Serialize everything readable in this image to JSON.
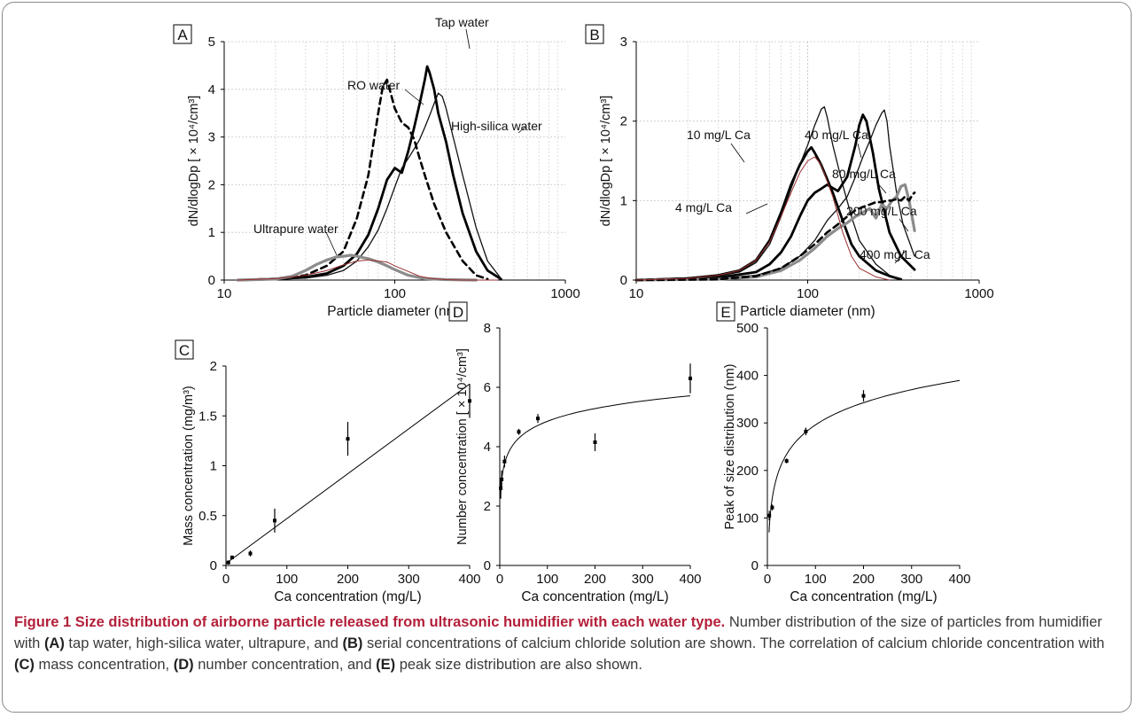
{
  "caption": {
    "title": "Figure 1 Size distribution of airborne particle released from ultrasonic humidifier with each water type.",
    "p1": " Number distribution of the size of particles from humidifier with ",
    "refA": "(A)",
    "p2": " tap water, high-silica water, ultrapure, and ",
    "refB": "(B)",
    "p3": " serial concentrations of calcium chloride solution are shown. The correlation of calcium chloride concentration with ",
    "refC": "(C)",
    "p4": " mass concentration, ",
    "refD": "(D)",
    "p5": " number concentration, and ",
    "refE": "(E)",
    "p6": " peak size distribution are also shown."
  },
  "chart_data": [
    {
      "panel": "A",
      "type": "line",
      "xscale": "log",
      "xlim": [
        10,
        1000
      ],
      "ylim": [
        0,
        5
      ],
      "xticks": [
        10,
        100,
        1000
      ],
      "yticks": [
        0,
        1,
        2,
        3,
        4,
        5
      ],
      "xlabel": "Particle diameter (nm)",
      "ylabel": "dN/dlogDp [ × 10⁴/cm³]",
      "grid": "vertical log minor + horizontal major",
      "series": [
        {
          "name": "Tap water",
          "style": "thick-black",
          "x": [
            12,
            20,
            30,
            40,
            50,
            60,
            70,
            80,
            90,
            100,
            110,
            120,
            130,
            140,
            150,
            155,
            160,
            170,
            180,
            200,
            220,
            250,
            300,
            350,
            420
          ],
          "y": [
            0,
            0.02,
            0.06,
            0.14,
            0.3,
            0.55,
            0.95,
            1.5,
            2.1,
            2.35,
            2.25,
            2.7,
            3.2,
            3.7,
            4.2,
            4.48,
            4.35,
            4.0,
            3.5,
            2.9,
            2.2,
            1.4,
            0.6,
            0.2,
            0.02
          ]
        },
        {
          "name": "High-silica water",
          "style": "thin-black",
          "x": [
            12,
            20,
            30,
            40,
            50,
            60,
            70,
            80,
            90,
            100,
            110,
            120,
            130,
            140,
            150,
            160,
            170,
            180,
            190,
            200,
            220,
            250,
            300,
            350,
            420
          ],
          "y": [
            0,
            0.02,
            0.04,
            0.1,
            0.2,
            0.4,
            0.7,
            1.05,
            1.5,
            1.95,
            2.35,
            2.55,
            2.75,
            2.95,
            3.2,
            3.45,
            3.7,
            3.92,
            3.85,
            3.6,
            3.0,
            2.2,
            1.1,
            0.4,
            0.03
          ]
        },
        {
          "name": "RO water",
          "style": "dashed",
          "x": [
            12,
            20,
            30,
            40,
            50,
            60,
            70,
            80,
            85,
            90,
            95,
            100,
            110,
            120,
            130,
            140,
            150,
            170,
            200,
            250,
            300,
            350
          ],
          "y": [
            0,
            0.03,
            0.1,
            0.3,
            0.6,
            1.3,
            2.2,
            3.5,
            4.05,
            4.2,
            3.9,
            3.6,
            3.3,
            3.2,
            2.95,
            2.55,
            2.2,
            1.6,
            1.0,
            0.4,
            0.1,
            0.02
          ]
        },
        {
          "name": "Ultrapure water",
          "style": "thick-grey",
          "x": [
            12,
            20,
            25,
            30,
            35,
            40,
            45,
            50,
            55,
            60,
            65,
            70,
            80,
            90,
            100,
            120,
            150,
            200,
            300
          ],
          "y": [
            0,
            0.02,
            0.08,
            0.2,
            0.33,
            0.42,
            0.48,
            0.5,
            0.52,
            0.5,
            0.47,
            0.45,
            0.38,
            0.3,
            0.22,
            0.1,
            0.03,
            0.01,
            0
          ]
        },
        {
          "name": "",
          "style": "thin-red",
          "x": [
            12,
            20,
            30,
            40,
            50,
            60,
            70,
            80,
            90,
            100,
            120,
            140,
            160,
            180,
            200,
            250,
            300,
            400
          ],
          "y": [
            0,
            0.03,
            0.1,
            0.2,
            0.32,
            0.4,
            0.42,
            0.4,
            0.38,
            0.3,
            0.18,
            0.08,
            0.04,
            0.02,
            0.01,
            0,
            0,
            0
          ]
        }
      ],
      "annotations": [
        "Tap water",
        "RO water",
        "High-silica water",
        "Ultrapure water"
      ]
    },
    {
      "panel": "B",
      "type": "line",
      "xscale": "log",
      "xlim": [
        10,
        1000
      ],
      "ylim": [
        0,
        3
      ],
      "xticks": [
        10,
        100,
        1000
      ],
      "yticks": [
        0,
        1,
        2,
        3
      ],
      "xlabel": "Particle diameter (nm)",
      "ylabel": "dN/dlogDp [ × 10⁴/cm³]",
      "grid": "vertical log minor + horizontal major",
      "series": [
        {
          "name": "4 mg/L Ca",
          "style": "thick-black",
          "x": [
            10,
            20,
            30,
            40,
            50,
            60,
            70,
            80,
            90,
            100,
            105,
            110,
            120,
            140,
            160,
            180,
            200,
            250,
            300,
            350
          ],
          "y": [
            0,
            0.02,
            0.06,
            0.12,
            0.25,
            0.5,
            0.85,
            1.2,
            1.45,
            1.62,
            1.67,
            1.6,
            1.45,
            1.1,
            0.75,
            0.45,
            0.3,
            0.12,
            0.05,
            0.01
          ]
        },
        {
          "name": "10 mg/L Ca",
          "style": "thin-black",
          "x": [
            10,
            20,
            30,
            40,
            50,
            60,
            70,
            80,
            90,
            100,
            110,
            120,
            125,
            130,
            140,
            160,
            180,
            200,
            250,
            300,
            350
          ],
          "y": [
            0,
            0.02,
            0.05,
            0.1,
            0.22,
            0.45,
            0.8,
            1.15,
            1.45,
            1.7,
            1.95,
            2.15,
            2.18,
            2.05,
            1.7,
            1.2,
            0.8,
            0.5,
            0.2,
            0.06,
            0.01
          ]
        },
        {
          "name": "40 mg/L Ca",
          "style": "thick-black",
          "x": [
            10,
            30,
            50,
            60,
            70,
            80,
            90,
            100,
            110,
            120,
            130,
            150,
            170,
            190,
            200,
            210,
            220,
            240,
            260,
            300,
            350,
            420
          ],
          "y": [
            0,
            0.03,
            0.1,
            0.2,
            0.35,
            0.55,
            0.8,
            1.0,
            1.1,
            1.15,
            1.2,
            1.12,
            1.3,
            1.7,
            1.95,
            2.08,
            2.0,
            1.6,
            1.15,
            0.6,
            0.3,
            0.13
          ]
        },
        {
          "name": "80 mg/L Ca",
          "style": "thin-black",
          "x": [
            10,
            30,
            50,
            70,
            90,
            110,
            130,
            150,
            170,
            190,
            210,
            230,
            250,
            270,
            280,
            290,
            300,
            330,
            360,
            420
          ],
          "y": [
            0,
            0.02,
            0.06,
            0.15,
            0.3,
            0.5,
            0.75,
            0.9,
            1.05,
            1.3,
            1.55,
            1.75,
            1.95,
            2.1,
            2.14,
            2.0,
            1.7,
            1.1,
            0.7,
            0.3
          ]
        },
        {
          "name": "200 mg/L Ca",
          "style": "thick-grey",
          "x": [
            10,
            30,
            50,
            70,
            90,
            110,
            130,
            150,
            170,
            190,
            210,
            230,
            250,
            270,
            290,
            310,
            330,
            350,
            370,
            390,
            410,
            420
          ],
          "y": [
            0,
            0.01,
            0.04,
            0.12,
            0.25,
            0.4,
            0.55,
            0.65,
            0.72,
            0.8,
            0.85,
            0.9,
            0.78,
            0.95,
            0.9,
            1.0,
            1.05,
            1.18,
            1.2,
            1.0,
            0.75,
            0.62
          ]
        },
        {
          "name": "400 mg/L Ca",
          "style": "dashed",
          "x": [
            10,
            30,
            50,
            70,
            90,
            110,
            130,
            150,
            170,
            190,
            210,
            230,
            250,
            270,
            290,
            310,
            330,
            350,
            370,
            390,
            410,
            420
          ],
          "y": [
            0,
            0.01,
            0.05,
            0.15,
            0.3,
            0.45,
            0.6,
            0.7,
            0.8,
            0.88,
            0.92,
            0.95,
            0.98,
            0.98,
            1.0,
            1.0,
            1.02,
            1.0,
            1.05,
            1.0,
            1.08,
            1.1
          ]
        },
        {
          "name": "",
          "style": "thin-red",
          "x": [
            10,
            20,
            30,
            40,
            50,
            60,
            70,
            80,
            90,
            100,
            110,
            120,
            140,
            160,
            180,
            200,
            250,
            300
          ],
          "y": [
            0,
            0.02,
            0.06,
            0.12,
            0.25,
            0.48,
            0.8,
            1.1,
            1.35,
            1.5,
            1.55,
            1.45,
            1.05,
            0.6,
            0.3,
            0.15,
            0.04,
            0
          ]
        }
      ],
      "annotations": [
        "10 mg/L Ca",
        "40 mg/L Ca",
        "80 mg/L Ca",
        "4 mg/L Ca",
        "200 mg/L Ca",
        "400 mg/L Ca"
      ]
    },
    {
      "panel": "C",
      "type": "scatter",
      "xlim": [
        0,
        400
      ],
      "ylim": [
        0,
        2
      ],
      "xticks": [
        0,
        100,
        200,
        300,
        400
      ],
      "yticks": [
        0,
        0.5,
        1,
        1.5,
        2
      ],
      "yticklabels": [
        "0",
        "0.5",
        "1",
        "1.5",
        "2"
      ],
      "xlabel": "Ca concentration (mg/L)",
      "ylabel": "Mass concentration (mg/m³)",
      "points": [
        {
          "x": 4,
          "y": 0.03,
          "err": 0.02
        },
        {
          "x": 10,
          "y": 0.08,
          "err": 0.02
        },
        {
          "x": 40,
          "y": 0.12,
          "err": 0.03
        },
        {
          "x": 80,
          "y": 0.45,
          "err": 0.12
        },
        {
          "x": 200,
          "y": 1.27,
          "err": 0.17
        },
        {
          "x": 400,
          "y": 1.65,
          "err": 0.17
        }
      ],
      "fit": {
        "kind": "linear",
        "x": [
          0,
          400
        ],
        "y": [
          0.02,
          1.82
        ]
      }
    },
    {
      "panel": "D",
      "type": "scatter",
      "xlim": [
        0,
        400
      ],
      "ylim": [
        0,
        8
      ],
      "xticks": [
        0,
        100,
        200,
        300,
        400
      ],
      "yticks": [
        0,
        2,
        4,
        6,
        8
      ],
      "xlabel": "Ca concentration (mg/L)",
      "ylabel": "Number concentration [ × 10⁴/cm³]",
      "points": [
        {
          "x": 2,
          "y": 2.6,
          "err": 0.35
        },
        {
          "x": 4,
          "y": 2.9,
          "err": 0.3
        },
        {
          "x": 10,
          "y": 3.5,
          "err": 0.2
        },
        {
          "x": 40,
          "y": 4.5,
          "err": 0.1
        },
        {
          "x": 80,
          "y": 4.95,
          "err": 0.15
        },
        {
          "x": 200,
          "y": 4.15,
          "err": 0.3
        },
        {
          "x": 400,
          "y": 6.3,
          "err": 0.5
        }
      ],
      "fit": {
        "kind": "logarithmic",
        "a": 0.62,
        "b": 2.0,
        "xmin": 1.5
      }
    },
    {
      "panel": "E",
      "type": "scatter",
      "xlim": [
        0,
        400
      ],
      "ylim": [
        0,
        500
      ],
      "xticks": [
        0,
        100,
        200,
        300,
        400
      ],
      "yticks": [
        0,
        100,
        200,
        300,
        400,
        500
      ],
      "xlabel": "Ca concentration (mg/L)",
      "ylabel": "Peak of size distribution (nm)",
      "points": [
        {
          "x": 4,
          "y": 105,
          "err": 10
        },
        {
          "x": 10,
          "y": 122,
          "err": 6
        },
        {
          "x": 40,
          "y": 220,
          "err": 5
        },
        {
          "x": 80,
          "y": 282,
          "err": 8
        },
        {
          "x": 200,
          "y": 357,
          "err": 12
        }
      ],
      "fit": {
        "kind": "logarithmic",
        "a": 67.5,
        "b": -15,
        "xmin": 3.5
      }
    }
  ]
}
